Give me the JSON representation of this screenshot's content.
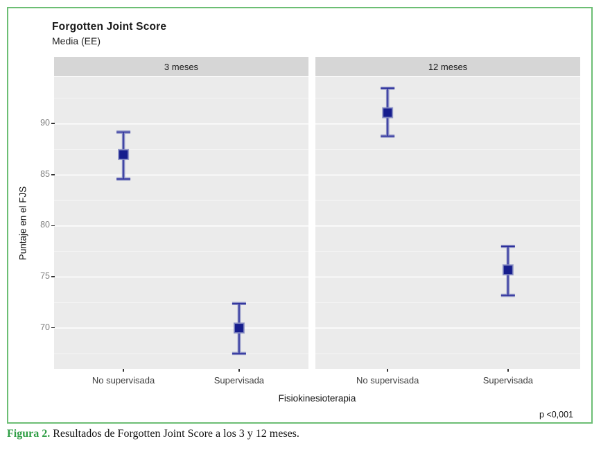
{
  "figure": {
    "title": "Forgotten Joint Score",
    "subtitle": "Media (EE)",
    "annotation": "p <0,001",
    "caption_label": "Figura 2.",
    "caption_text": " Resultados de Forgotten Joint Score a los 3 y 12 meses."
  },
  "chart_data": {
    "type": "scatter",
    "subtype": "mean-with-error-bars, faceted",
    "title": "Forgotten Joint Score",
    "subtitle": "Media (EE)",
    "xlabel": "Fisiokinesioterapia",
    "ylabel": "Puntaje en el FJS",
    "ylim": [
      66,
      94.6
    ],
    "yticks": [
      70,
      75,
      80,
      85,
      90
    ],
    "yticks_minor": [
      67.5,
      72.5,
      77.5,
      82.5,
      87.5,
      92.5
    ],
    "grid": true,
    "legend": false,
    "categories": [
      "No supervisada",
      "Supervisada"
    ],
    "facets": [
      {
        "label": "3 meses",
        "points": [
          {
            "category": "No supervisada",
            "mean": 87.0,
            "err_low": 84.6,
            "err_high": 89.2
          },
          {
            "category": "Supervisada",
            "mean": 70.0,
            "err_low": 67.5,
            "err_high": 72.4
          }
        ]
      },
      {
        "label": "12 meses",
        "points": [
          {
            "category": "No supervisada",
            "mean": 91.1,
            "err_low": 88.8,
            "err_high": 93.5
          },
          {
            "category": "Supervisada",
            "mean": 75.7,
            "err_low": 73.2,
            "err_high": 78.0
          }
        ]
      }
    ],
    "annotation": "p <0,001"
  },
  "colors": {
    "border_green": "#6cbe74",
    "caption_green": "#2f9e45",
    "panel_bg": "#ebebeb",
    "strip_bg": "#d6d6d6",
    "grid_major": "#ffffff",
    "marker_navy": "#161d8d",
    "errorbar_blue": "#8a8fc4",
    "errorbar_dark": "#2c2f9c",
    "axis_text_gray": "#808080",
    "x_label_dark": "#3d3d3d"
  }
}
